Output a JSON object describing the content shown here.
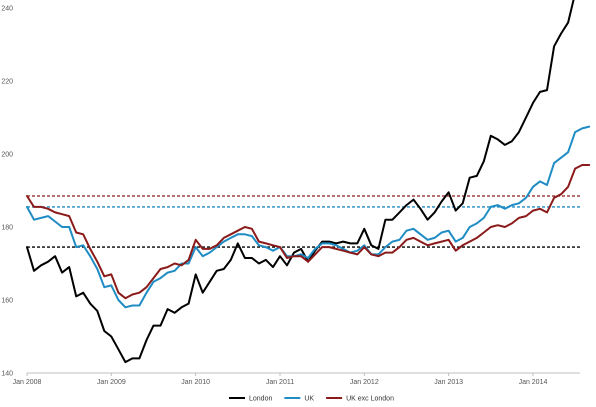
{
  "chart_data": {
    "type": "line",
    "title": "",
    "xlabel": "",
    "ylabel": "",
    "ylim": [
      140,
      240
    ],
    "yticks": [
      140,
      160,
      180,
      200,
      220,
      240
    ],
    "xlim": [
      "2008-01",
      "2014-09"
    ],
    "xticks": [
      {
        "label": "Jan 2008",
        "x": "2008-01"
      },
      {
        "label": "Jan 2009",
        "x": "2009-01"
      },
      {
        "label": "Jan 2010",
        "x": "2010-01"
      },
      {
        "label": "Jan 2011",
        "x": "2011-01"
      },
      {
        "label": "Jan 2012",
        "x": "2012-01"
      },
      {
        "label": "Jan 2013",
        "x": "2013-01"
      },
      {
        "label": "Jan 2014",
        "x": "2014-01"
      }
    ],
    "grid": false,
    "legend_position": "bottom",
    "x": [
      "2008-01",
      "2008-02",
      "2008-03",
      "2008-04",
      "2008-05",
      "2008-06",
      "2008-07",
      "2008-08",
      "2008-09",
      "2008-10",
      "2008-11",
      "2008-12",
      "2009-01",
      "2009-02",
      "2009-03",
      "2009-04",
      "2009-05",
      "2009-06",
      "2009-07",
      "2009-08",
      "2009-09",
      "2009-10",
      "2009-11",
      "2009-12",
      "2010-01",
      "2010-02",
      "2010-03",
      "2010-04",
      "2010-05",
      "2010-06",
      "2010-07",
      "2010-08",
      "2010-09",
      "2010-10",
      "2010-11",
      "2010-12",
      "2011-01",
      "2011-02",
      "2011-03",
      "2011-04",
      "2011-05",
      "2011-06",
      "2011-07",
      "2011-08",
      "2011-09",
      "2011-10",
      "2011-11",
      "2011-12",
      "2012-01",
      "2012-02",
      "2012-03",
      "2012-04",
      "2012-05",
      "2012-06",
      "2012-07",
      "2012-08",
      "2012-09",
      "2012-10",
      "2012-11",
      "2012-12",
      "2013-01",
      "2013-02",
      "2013-03",
      "2013-04",
      "2013-05",
      "2013-06",
      "2013-07",
      "2013-08",
      "2013-09",
      "2013-10",
      "2013-11",
      "2013-12",
      "2014-01",
      "2014-02",
      "2014-03",
      "2014-04",
      "2014-05",
      "2014-06",
      "2014-07",
      "2014-08",
      "2014-09"
    ],
    "series": [
      {
        "name": "London",
        "color": "#000000",
        "values": [
          174.5,
          168,
          169.5,
          170.5,
          172,
          167.5,
          169,
          161,
          162,
          159,
          157,
          151.5,
          150,
          146.5,
          143,
          144,
          144,
          149,
          153,
          153,
          157.5,
          156.5,
          158,
          159,
          167,
          162,
          165,
          168,
          168.5,
          171,
          175.5,
          171.5,
          171.5,
          170,
          171,
          169,
          172,
          169.5,
          173,
          174,
          170.5,
          173.5,
          176,
          176,
          175.5,
          176,
          175.5,
          175.5,
          179.5,
          175,
          174,
          182,
          182,
          184,
          186,
          187.5,
          185,
          182,
          184,
          187,
          189.5,
          184.5,
          186.5,
          193.5,
          194,
          198,
          205,
          204,
          202.5,
          203.5,
          206,
          210,
          214,
          217,
          217.5,
          229.5,
          233,
          236,
          244,
          243.5,
          243.5
        ]
      },
      {
        "name": "UK",
        "color": "#1f8cc4",
        "values": [
          185.5,
          182,
          182.5,
          183,
          181.5,
          180,
          180,
          174.5,
          175,
          172,
          168.5,
          163.5,
          164,
          160,
          158,
          158.5,
          158.5,
          162,
          165,
          166,
          167.5,
          168,
          170,
          170,
          174.5,
          172,
          173,
          174.5,
          176,
          177,
          178,
          178,
          177.5,
          175,
          174.5,
          173.5,
          174.5,
          172,
          172,
          172.5,
          171.5,
          174,
          175.5,
          175.5,
          175,
          174,
          173,
          173.5,
          175,
          172.5,
          172.5,
          174.5,
          176,
          176.5,
          179,
          179.5,
          178,
          176.5,
          177,
          178.5,
          179,
          176,
          177,
          180,
          181,
          182.5,
          185.5,
          186,
          185,
          186,
          186.5,
          188,
          191,
          192.5,
          191.5,
          197.5,
          199,
          200.5,
          206,
          207,
          207.5
        ]
      },
      {
        "name": "UK exc London",
        "color": "#8b1a1a",
        "values": [
          188.5,
          185.5,
          185.5,
          185,
          184,
          183.5,
          183,
          178.5,
          178,
          174,
          170.5,
          166.5,
          167,
          162,
          160.5,
          161.5,
          162,
          163.5,
          166,
          168.5,
          169,
          170,
          169.5,
          171,
          176.5,
          174,
          174,
          175,
          177,
          178,
          179,
          180,
          179.5,
          176,
          175.5,
          175,
          174.5,
          171.5,
          172,
          172,
          170.5,
          172.5,
          174.5,
          174.5,
          174,
          173.5,
          173,
          172.5,
          174.5,
          172.5,
          172,
          173,
          173,
          174.5,
          176.5,
          177,
          176,
          175,
          175.5,
          176,
          176.5,
          173.5,
          175,
          176,
          177,
          178.5,
          180,
          180.5,
          180,
          181,
          182.5,
          183,
          184.5,
          185,
          184,
          188,
          189,
          191,
          196,
          197,
          197
        ]
      }
    ],
    "reference_lines": [
      {
        "y": 188.5,
        "color": "#8b1a1a",
        "style": "dashed"
      },
      {
        "y": 185.5,
        "color": "#1f8cc4",
        "style": "dashed"
      },
      {
        "y": 174.5,
        "color": "#000000",
        "style": "dashed"
      }
    ]
  }
}
